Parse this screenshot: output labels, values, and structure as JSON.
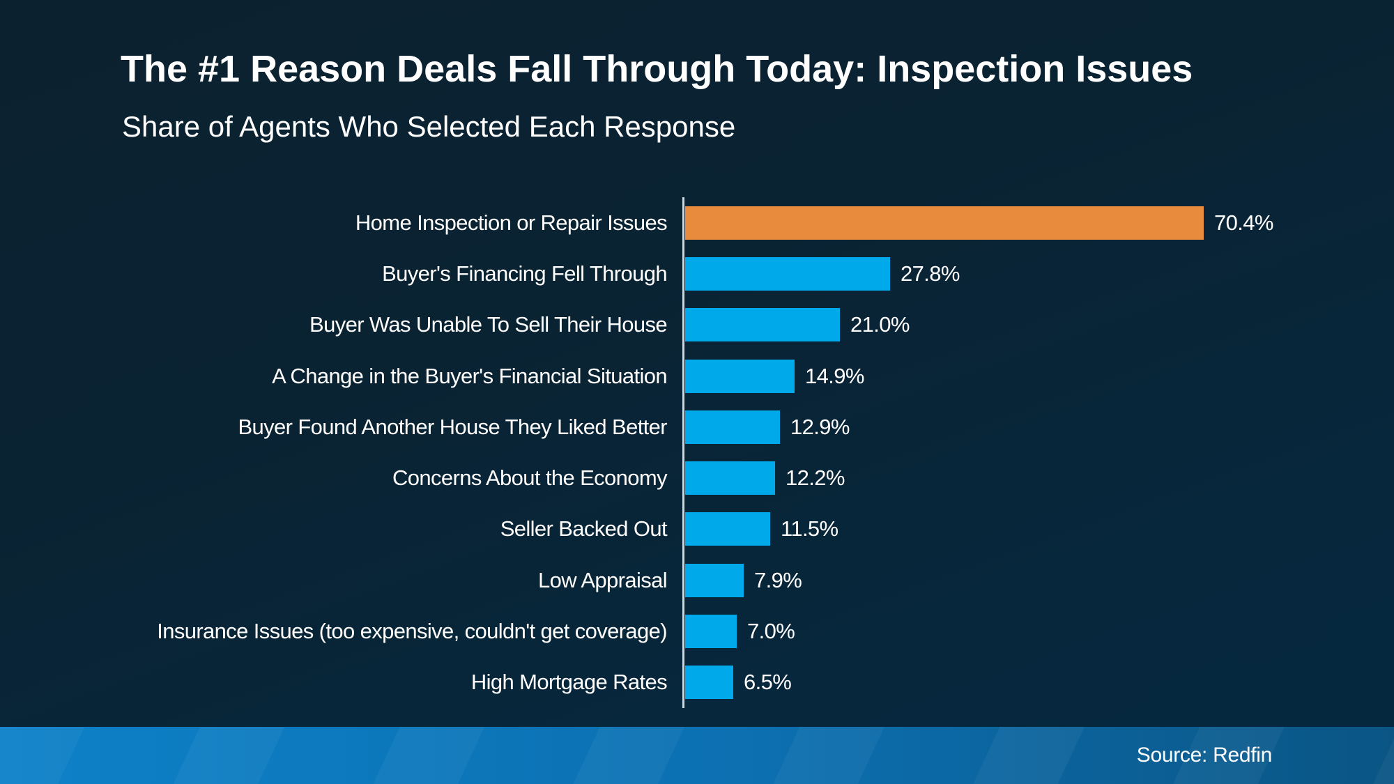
{
  "title": "The #1 Reason Deals Fall Through Today: Inspection Issues",
  "subtitle": "Share of Agents Who Selected Each Response",
  "footer": {
    "source_label": "Source: Redfin"
  },
  "colors": {
    "text": "#ffffff",
    "axis_line": "#cfd7db",
    "bar_default": "#00a9e9",
    "bar_highlight": "#e98b3c",
    "footer_left": "#0d81c8",
    "footer_right": "#0a5584",
    "background_top": "#0c2130",
    "background_bottom": "#05283f"
  },
  "chart_data": {
    "type": "bar",
    "orientation": "horizontal",
    "title": "The #1 Reason Deals Fall Through Today: Inspection Issues",
    "subtitle": "Share of Agents Who Selected Each Response",
    "categories": [
      "Home Inspection or Repair Issues",
      "Buyer's Financing Fell Through",
      "Buyer Was Unable To Sell Their House",
      "A Change in the Buyer's Financial Situation",
      "Buyer Found Another House They Liked Better",
      "Concerns About the Economy",
      "Seller Backed Out",
      "Low Appraisal",
      "Insurance Issues (too expensive, couldn't get coverage)",
      "High Mortgage Rates"
    ],
    "values": [
      70.4,
      27.8,
      21.0,
      14.9,
      12.9,
      12.2,
      11.5,
      7.9,
      7.0,
      6.5
    ],
    "value_labels": [
      "70.4%",
      "27.8%",
      "21.0%",
      "14.9%",
      "12.9%",
      "12.2%",
      "11.5%",
      "7.9%",
      "7.0%",
      "6.5%"
    ],
    "unit": "%",
    "highlight_index": 0,
    "sorted": "descending",
    "xlim": [
      0,
      75
    ],
    "grid": false,
    "legend": false,
    "source": "Source: Redfin"
  }
}
